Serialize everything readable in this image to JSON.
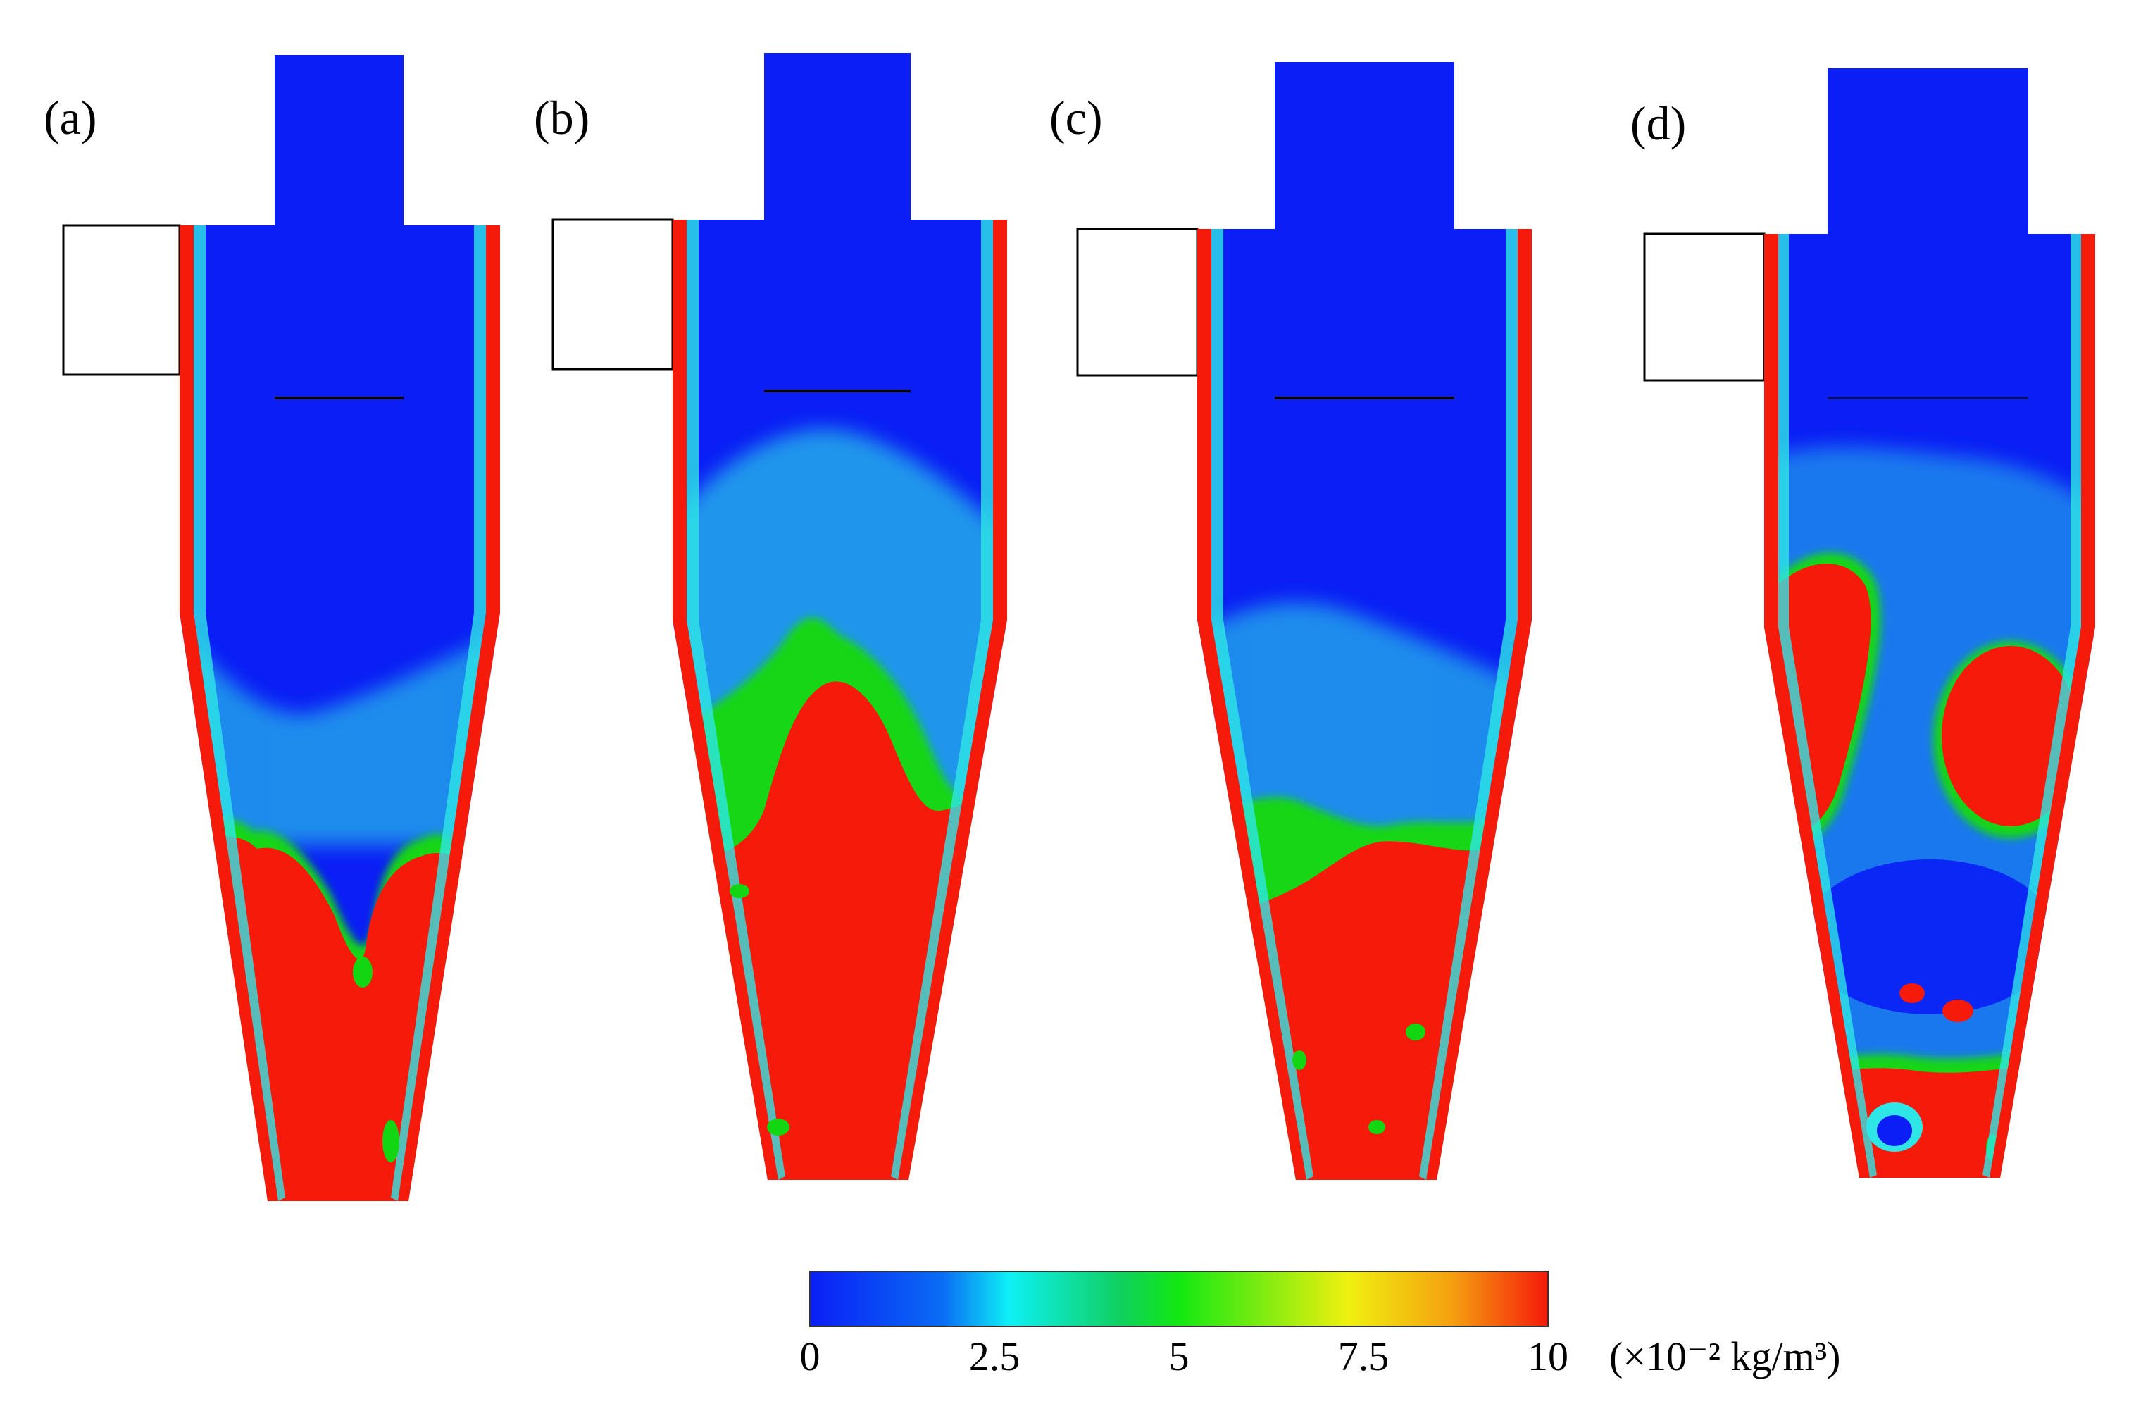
{
  "figure": {
    "panels": [
      {
        "label": "(a)",
        "accumulation_level": 0.35
      },
      {
        "label": "(b)",
        "accumulation_level": 0.55
      },
      {
        "label": "(c)",
        "accumulation_level": 0.3
      },
      {
        "label": "(d)",
        "accumulation_level": 0.6
      }
    ],
    "colorbar": {
      "ticks": [
        "0",
        "2.5",
        "5",
        "7.5",
        "10"
      ],
      "unit": "(×10⁻² kg/m³)",
      "colors": [
        "#0a1ef5",
        "#0a6cf5",
        "#0ef0f5",
        "#10d060",
        "#12e812",
        "#f0f010",
        "#f5a010",
        "#f51a0a"
      ]
    },
    "colors": {
      "low": "#0a1ef5",
      "mid": "#2ee6e6",
      "green": "#12d612",
      "high": "#f51a0a",
      "outline": "#000000"
    }
  }
}
